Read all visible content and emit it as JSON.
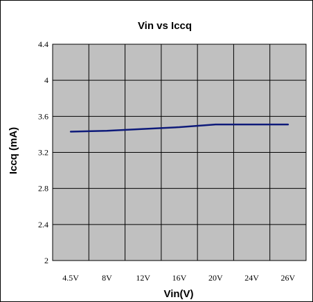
{
  "chart_data": {
    "type": "line",
    "title": "Vin vs Iccq",
    "xlabel": "Vin(V)",
    "ylabel": "Iccq (mA)",
    "categories": [
      "4.5V",
      "8V",
      "12V",
      "16V",
      "20V",
      "24V",
      "26V"
    ],
    "series": [
      {
        "values": [
          3.43,
          3.44,
          3.46,
          3.48,
          3.51,
          3.51,
          3.51
        ]
      }
    ],
    "ylim": [
      2,
      4.4
    ],
    "yticks": [
      2,
      2.4,
      2.8,
      3.2,
      3.6,
      4,
      4.4
    ],
    "ytick_labels": [
      "2",
      "2.4",
      "2.8",
      "3.2",
      "3.6",
      "4",
      "4.4"
    ],
    "grid": true,
    "legend": "none",
    "colors": {
      "plot_background": "#c0c0c0",
      "grid": "#000000",
      "line": "#0d1a7a",
      "frame": "#000000"
    }
  }
}
